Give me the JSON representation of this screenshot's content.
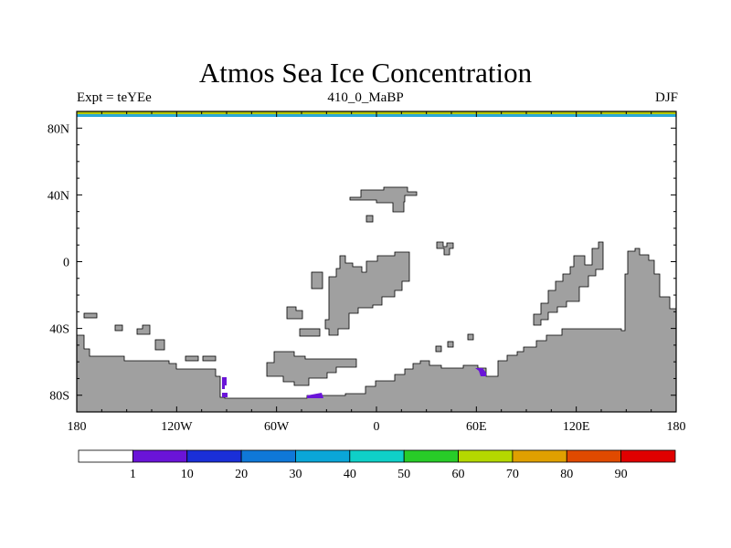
{
  "title": "Atmos Sea Ice Concentration",
  "subtitle_left": "Expt = teYEe",
  "subtitle_center": "410_0_MaBP",
  "subtitle_right": "DJF",
  "axes": {
    "lat_labels": [
      "80N",
      "40N",
      "0",
      "40S",
      "80S"
    ],
    "lat_values": [
      80,
      40,
      0,
      -40,
      -80
    ],
    "lon_labels": [
      "180",
      "120W",
      "60W",
      "0",
      "60E",
      "120E",
      "180"
    ],
    "lon_values": [
      -180,
      -120,
      -60,
      0,
      60,
      120,
      180
    ]
  },
  "colorbar": {
    "labels": [
      "1",
      "10",
      "20",
      "30",
      "40",
      "50",
      "60",
      "70",
      "80",
      "90"
    ],
    "colors": [
      "#ffffff",
      "#6a14d8",
      "#1a2fd8",
      "#0f78d8",
      "#0aa6d8",
      "#0fd0c8",
      "#28cc28",
      "#b4d800",
      "#e0a000",
      "#e04a00",
      "#e00000"
    ]
  },
  "colors": {
    "land": "#a0a0a0",
    "ice_low": "#6a14d8",
    "top_band": [
      "#2aa8d8",
      "#b4c800"
    ]
  }
}
